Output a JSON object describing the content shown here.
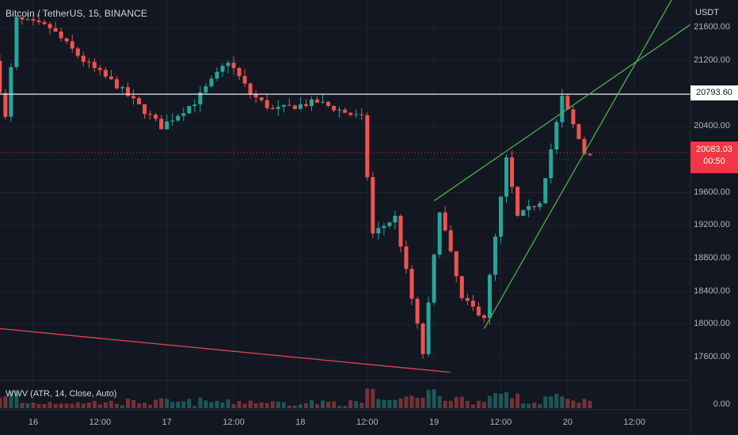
{
  "header": {
    "symbol_line": "Bitcoin / TetherUS, 15, BINANCE",
    "indicator": "WWV (ATR, 14, Close, Auto)",
    "currency": "USDT"
  },
  "colors": {
    "background": "#131722",
    "grid": "#1e2230",
    "up": "#26a69a",
    "down": "#ef5350",
    "trendline_green": "#4caf50",
    "trendline_red": "#e0474f",
    "resistance_line": "#ffffff",
    "price_tag": "#f23645"
  },
  "chart_data": {
    "type": "candlestick",
    "symbol": "Bitcoin / TetherUS",
    "interval": "15",
    "exchange": "BINANCE",
    "y_axis": {
      "unit": "USDT",
      "ticks": [
        "21600.00",
        "21200.00",
        "20800.00",
        "20400.00",
        "20000.00",
        "19600.00",
        "19200.00",
        "18800.00",
        "18400.00",
        "18000.00",
        "17600.00"
      ],
      "range": [
        17450,
        21830
      ]
    },
    "x_axis": {
      "ticks": [
        "16",
        "12:00",
        "17",
        "12:00",
        "18",
        "12:00",
        "19",
        "12:00",
        "20",
        "12:00"
      ]
    },
    "price_path": [
      {
        "t": "Nov 15 18:00",
        "p": 21200
      },
      {
        "t": "Nov 15 20:00",
        "p": 20500
      },
      {
        "t": "Nov 15 22:00",
        "p": 21700
      },
      {
        "t": "Nov 16 04:00",
        "p": 21600
      },
      {
        "t": "Nov 16 10:00",
        "p": 21200
      },
      {
        "t": "Nov 16 16:00",
        "p": 20900
      },
      {
        "t": "Nov 17 00:00",
        "p": 20400
      },
      {
        "t": "Nov 17 06:00",
        "p": 20700
      },
      {
        "t": "Nov 17 12:00",
        "p": 21200
      },
      {
        "t": "Nov 17 16:00",
        "p": 20800
      },
      {
        "t": "Nov 17 20:00",
        "p": 20600
      },
      {
        "t": "Nov 18 04:00",
        "p": 20700
      },
      {
        "t": "Nov 18 12:00",
        "p": 20500
      },
      {
        "t": "Nov 18 14:00",
        "p": 19100
      },
      {
        "t": "Nov 18 18:00",
        "p": 19300
      },
      {
        "t": "Nov 18 23:00",
        "p": 17650
      },
      {
        "t": "Nov 19 02:00",
        "p": 19400
      },
      {
        "t": "Nov 19 06:00",
        "p": 18300
      },
      {
        "t": "Nov 19 10:00",
        "p": 18100
      },
      {
        "t": "Nov 19 14:00",
        "p": 20000
      },
      {
        "t": "Nov 19 16:00",
        "p": 19300
      },
      {
        "t": "Nov 19 20:00",
        "p": 19500
      },
      {
        "t": "Nov 20 00:00",
        "p": 20750
      },
      {
        "t": "Nov 20 04:00",
        "p": 20083
      }
    ],
    "volume": "WWV (ATR, 14, Close, Auto)",
    "volume_axis_label": "0.00",
    "last_price": "20083.03",
    "countdown": "00:50",
    "horizontal_line": "20793.60",
    "drawings": [
      {
        "type": "trendline",
        "color": "green",
        "from": {
          "t": "Nov 19 00:00",
          "p": 19500
        },
        "to": {
          "t": "Nov 20 04:00",
          "p": 20800
        },
        "extended": true
      },
      {
        "type": "trendline",
        "color": "green",
        "from": {
          "t": "Nov 19 09:00",
          "p": 17950
        },
        "to": {
          "t": "Nov 20 04:00",
          "p": 20200
        },
        "extended": true
      },
      {
        "type": "trendline",
        "color": "red",
        "from": {
          "t": "Nov 15 18:00",
          "p": 17950
        },
        "to": {
          "t": "Nov 19 03:00",
          "p": 17420
        },
        "extended": false
      }
    ]
  }
}
